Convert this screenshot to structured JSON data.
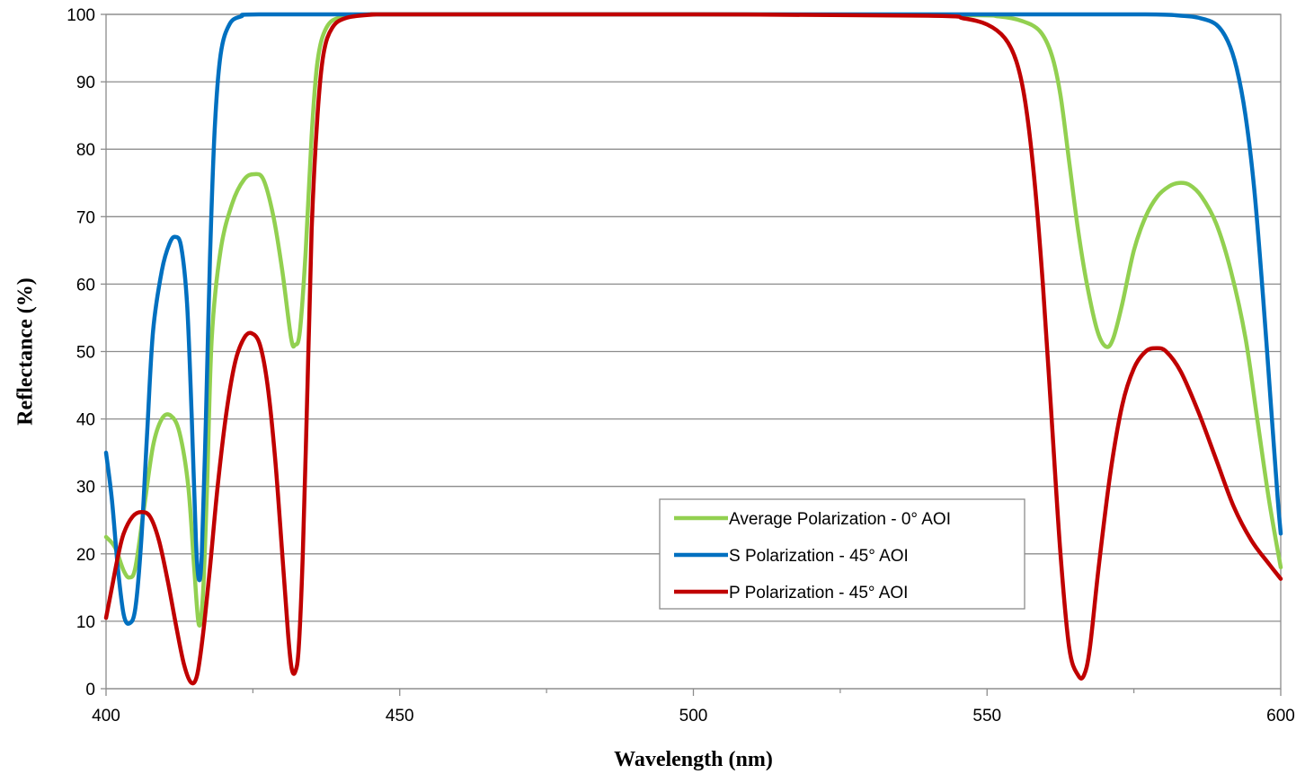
{
  "chart_data": {
    "type": "line",
    "title": "",
    "xlabel": "Wavelength (nm)",
    "ylabel": "Reflectance (%)",
    "xlim": [
      400,
      600
    ],
    "ylim": [
      0,
      100
    ],
    "x_ticks": [
      400,
      450,
      500,
      550,
      600
    ],
    "x_minor_ticks": [
      425,
      475,
      525,
      575
    ],
    "y_ticks": [
      0,
      10,
      20,
      30,
      40,
      50,
      60,
      70,
      80,
      90,
      100
    ],
    "grid": "horizontal",
    "legend_position": "lower-right",
    "series": [
      {
        "name": "Average Polarization - 0° AOI",
        "color": "#92d050",
        "points": [
          [
            400,
            22.5
          ],
          [
            401.5,
            21
          ],
          [
            403,
            17.5
          ],
          [
            404,
            16.5
          ],
          [
            405,
            18
          ],
          [
            406.5,
            27
          ],
          [
            408,
            36
          ],
          [
            409.5,
            40
          ],
          [
            411,
            40.5
          ],
          [
            412.5,
            38
          ],
          [
            414,
            30
          ],
          [
            415,
            18
          ],
          [
            415.8,
            9.5
          ],
          [
            416.5,
            14
          ],
          [
            417.2,
            30
          ],
          [
            418,
            52
          ],
          [
            419.5,
            65
          ],
          [
            421.5,
            72
          ],
          [
            423.5,
            75.5
          ],
          [
            425.2,
            76.3
          ],
          [
            426.8,
            75.5
          ],
          [
            428.5,
            70
          ],
          [
            430,
            62
          ],
          [
            431.5,
            52
          ],
          [
            432.2,
            51
          ],
          [
            433,
            53
          ],
          [
            434,
            65
          ],
          [
            435,
            82
          ],
          [
            436,
            93
          ],
          [
            437.5,
            98
          ],
          [
            440,
            99.6
          ],
          [
            445,
            100
          ],
          [
            450,
            100
          ],
          [
            500,
            100
          ],
          [
            545,
            99.9
          ],
          [
            552,
            99.7
          ],
          [
            556,
            99
          ],
          [
            559,
            97.5
          ],
          [
            561,
            94
          ],
          [
            562.5,
            88
          ],
          [
            564,
            78
          ],
          [
            565.5,
            68
          ],
          [
            567,
            60
          ],
          [
            568.8,
            53
          ],
          [
            570.3,
            50.7
          ],
          [
            571.5,
            52
          ],
          [
            573,
            57
          ],
          [
            575,
            65
          ],
          [
            577,
            70
          ],
          [
            579,
            73
          ],
          [
            581,
            74.5
          ],
          [
            582.7,
            75
          ],
          [
            584.5,
            74.7
          ],
          [
            586.5,
            73
          ],
          [
            589,
            69
          ],
          [
            591.5,
            62
          ],
          [
            594,
            52
          ],
          [
            596,
            40
          ],
          [
            598,
            28
          ],
          [
            600,
            18
          ]
        ]
      },
      {
        "name": "S Polarization - 45° AOI",
        "color": "#0070c0",
        "points": [
          [
            400,
            35
          ],
          [
            401,
            28
          ],
          [
            402,
            18
          ],
          [
            403,
            11
          ],
          [
            404,
            9.7
          ],
          [
            405,
            12
          ],
          [
            406,
            22
          ],
          [
            407,
            38
          ],
          [
            408,
            53
          ],
          [
            409.5,
            62
          ],
          [
            410.8,
            66
          ],
          [
            411.8,
            67
          ],
          [
            412.8,
            65.5
          ],
          [
            413.8,
            57
          ],
          [
            414.6,
            40
          ],
          [
            415.3,
            22
          ],
          [
            415.8,
            16.2
          ],
          [
            416.3,
            20
          ],
          [
            417,
            40
          ],
          [
            417.7,
            64
          ],
          [
            418.5,
            83
          ],
          [
            419.5,
            94
          ],
          [
            421,
            98.5
          ],
          [
            423,
            99.7
          ],
          [
            426,
            100
          ],
          [
            450,
            100
          ],
          [
            550,
            100
          ],
          [
            577,
            100
          ],
          [
            583,
            99.8
          ],
          [
            586,
            99.5
          ],
          [
            589,
            98.5
          ],
          [
            591,
            96
          ],
          [
            592.5,
            92
          ],
          [
            594,
            85
          ],
          [
            595.5,
            74
          ],
          [
            597,
            58
          ],
          [
            598.5,
            40
          ],
          [
            599.5,
            28
          ],
          [
            600,
            23
          ]
        ]
      },
      {
        "name": "P Polarization - 45° AOI",
        "color": "#c00000",
        "points": [
          [
            400,
            10.5
          ],
          [
            401,
            15
          ],
          [
            402,
            19.5
          ],
          [
            403,
            23
          ],
          [
            404.5,
            25.5
          ],
          [
            406,
            26.2
          ],
          [
            407.5,
            25.5
          ],
          [
            409,
            22
          ],
          [
            410.5,
            16
          ],
          [
            412,
            9
          ],
          [
            413.3,
            3.5
          ],
          [
            414.5,
            0.9
          ],
          [
            415.5,
            2
          ],
          [
            416.5,
            8
          ],
          [
            417.7,
            18
          ],
          [
            419,
            30
          ],
          [
            420.5,
            41
          ],
          [
            422,
            48.5
          ],
          [
            423.5,
            52
          ],
          [
            424.8,
            52.7
          ],
          [
            426.2,
            51
          ],
          [
            427.5,
            45
          ],
          [
            428.8,
            34
          ],
          [
            430,
            20
          ],
          [
            431,
            8
          ],
          [
            431.6,
            3
          ],
          [
            432.2,
            2.5
          ],
          [
            432.8,
            6
          ],
          [
            433.5,
            20
          ],
          [
            434.3,
            45
          ],
          [
            435,
            68
          ],
          [
            436,
            85
          ],
          [
            437,
            94
          ],
          [
            438.5,
            98
          ],
          [
            441,
            99.5
          ],
          [
            446,
            100
          ],
          [
            450,
            100
          ],
          [
            500,
            100
          ],
          [
            540,
            99.8
          ],
          [
            546,
            99.4
          ],
          [
            550,
            98.5
          ],
          [
            553,
            96.5
          ],
          [
            555,
            93
          ],
          [
            556.5,
            87
          ],
          [
            558,
            76
          ],
          [
            559.5,
            60
          ],
          [
            561,
            40
          ],
          [
            562.5,
            20
          ],
          [
            564,
            6
          ],
          [
            565.5,
            2
          ],
          [
            566.5,
            2
          ],
          [
            567.5,
            6
          ],
          [
            569,
            18
          ],
          [
            571,
            32
          ],
          [
            573,
            42
          ],
          [
            575,
            47.5
          ],
          [
            577,
            50
          ],
          [
            578.8,
            50.5
          ],
          [
            580.5,
            50
          ],
          [
            583,
            47
          ],
          [
            586,
            41
          ],
          [
            589,
            34
          ],
          [
            592,
            27
          ],
          [
            595,
            22
          ],
          [
            598,
            18.5
          ],
          [
            600,
            16.3
          ]
        ]
      }
    ]
  }
}
